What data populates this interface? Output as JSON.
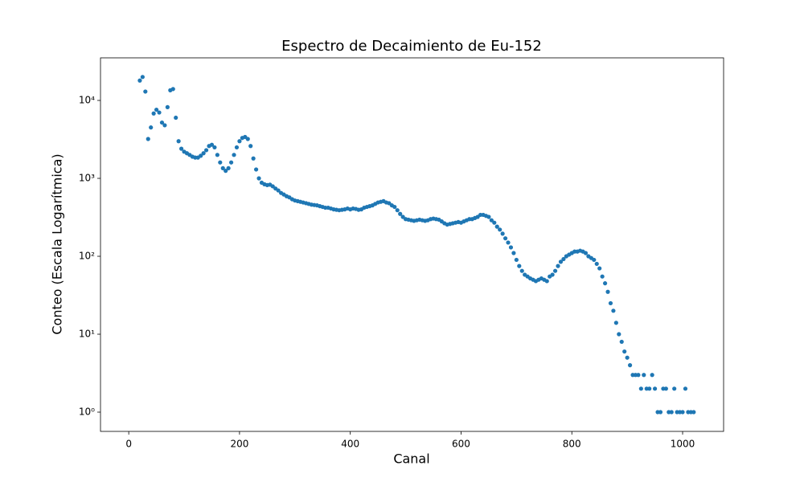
{
  "chart_data": {
    "type": "scatter",
    "title": "Espectro de Decaimiento de Eu-152",
    "xlabel": "Canal",
    "ylabel": "Conteo (Escala Logarítmica)",
    "color": "#1f77b4",
    "ylog": true,
    "xlim": [
      -51,
      1074
    ],
    "ylim": [
      0.566,
      35200
    ],
    "xticks": [
      0,
      200,
      400,
      600,
      800,
      1000
    ],
    "yticks": [
      {
        "value": 1,
        "label": "10⁰"
      },
      {
        "value": 10,
        "label": "10¹"
      },
      {
        "value": 100,
        "label": "10²"
      },
      {
        "value": 1000,
        "label": "10³"
      },
      {
        "value": 10000,
        "label": "10⁴"
      }
    ],
    "x": [
      20,
      25,
      30,
      35,
      40,
      45,
      50,
      55,
      60,
      65,
      70,
      75,
      80,
      85,
      90,
      95,
      100,
      105,
      110,
      115,
      120,
      125,
      130,
      135,
      140,
      145,
      150,
      155,
      160,
      165,
      170,
      175,
      180,
      185,
      190,
      195,
      200,
      205,
      210,
      215,
      220,
      225,
      230,
      235,
      240,
      245,
      250,
      255,
      260,
      265,
      270,
      275,
      280,
      285,
      290,
      295,
      300,
      305,
      310,
      315,
      320,
      325,
      330,
      335,
      340,
      345,
      350,
      355,
      360,
      365,
      370,
      375,
      380,
      385,
      390,
      395,
      400,
      405,
      410,
      415,
      420,
      425,
      430,
      435,
      440,
      445,
      450,
      455,
      460,
      465,
      470,
      475,
      480,
      485,
      490,
      495,
      500,
      505,
      510,
      515,
      520,
      525,
      530,
      535,
      540,
      545,
      550,
      555,
      560,
      565,
      570,
      575,
      580,
      585,
      590,
      595,
      600,
      605,
      610,
      615,
      620,
      625,
      630,
      635,
      640,
      645,
      650,
      655,
      660,
      665,
      670,
      675,
      680,
      685,
      690,
      695,
      700,
      705,
      710,
      715,
      720,
      725,
      730,
      735,
      740,
      745,
      750,
      755,
      760,
      765,
      770,
      775,
      780,
      785,
      790,
      795,
      800,
      805,
      810,
      815,
      820,
      825,
      830,
      835,
      840,
      845,
      850,
      855,
      860,
      865,
      870,
      875,
      880,
      885,
      890,
      895,
      900,
      905,
      910,
      915,
      920,
      925,
      930,
      935,
      940,
      945,
      950,
      955,
      960,
      965,
      970,
      975,
      980,
      985,
      990,
      995,
      1000,
      1005,
      1010,
      1015,
      1020
    ],
    "values": [
      18000,
      20000,
      13000,
      3200,
      4500,
      6800,
      7600,
      7000,
      5200,
      4800,
      8200,
      13500,
      14000,
      6000,
      3000,
      2400,
      2200,
      2100,
      2000,
      1900,
      1850,
      1850,
      1950,
      2100,
      2300,
      2600,
      2700,
      2500,
      2000,
      1600,
      1350,
      1250,
      1350,
      1600,
      2000,
      2500,
      3000,
      3300,
      3400,
      3200,
      2600,
      1800,
      1300,
      1000,
      880,
      840,
      820,
      830,
      790,
      740,
      700,
      650,
      620,
      590,
      570,
      540,
      520,
      510,
      500,
      490,
      480,
      470,
      460,
      455,
      450,
      440,
      430,
      420,
      420,
      410,
      400,
      395,
      390,
      395,
      400,
      410,
      400,
      410,
      405,
      395,
      400,
      420,
      430,
      440,
      450,
      470,
      490,
      500,
      510,
      490,
      480,
      450,
      430,
      390,
      350,
      320,
      300,
      295,
      290,
      285,
      290,
      295,
      290,
      285,
      290,
      300,
      305,
      300,
      295,
      280,
      265,
      255,
      260,
      265,
      270,
      275,
      270,
      280,
      290,
      300,
      300,
      310,
      320,
      340,
      340,
      330,
      320,
      290,
      270,
      240,
      220,
      195,
      170,
      150,
      130,
      110,
      90,
      75,
      65,
      58,
      55,
      52,
      50,
      48,
      50,
      52,
      50,
      48,
      55,
      58,
      65,
      75,
      85,
      92,
      100,
      105,
      110,
      115,
      115,
      118,
      115,
      110,
      100,
      95,
      90,
      80,
      70,
      55,
      45,
      35,
      25,
      20,
      14,
      10,
      8,
      6,
      5,
      4,
      3,
      3,
      3,
      2,
      3,
      2,
      2,
      3,
      2,
      1,
      1,
      2,
      2,
      1,
      1,
      2,
      1,
      1,
      1,
      2,
      1,
      1,
      1
    ]
  }
}
